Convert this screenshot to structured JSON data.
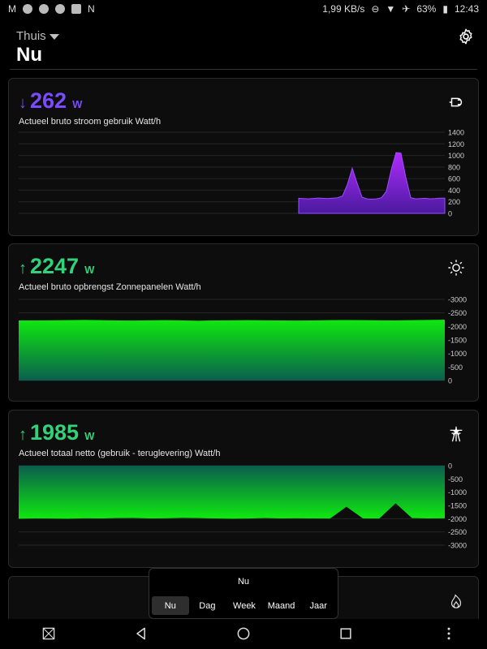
{
  "status_bar": {
    "speed": "1,99 KB/s",
    "battery": "63%",
    "time": "12:43"
  },
  "header": {
    "home_label": "Thuis",
    "title": "Nu"
  },
  "cards": [
    {
      "arrow": "↓",
      "value": "262",
      "unit": "W",
      "description": "Actueel bruto stroom gebruik Watt/h",
      "icon": "plug-icon",
      "color": "#7b4bff"
    },
    {
      "arrow": "↑",
      "value": "2247",
      "unit": "W",
      "description": "Actueel bruto opbrengst Zonnepanelen Watt/h",
      "icon": "sun-icon",
      "color": "#33d17a"
    },
    {
      "arrow": "↑",
      "value": "1985",
      "unit": "W",
      "description": "Actueel totaal netto (gebruik - teruglevering)  Watt/h",
      "icon": "power-tower-icon",
      "color": "#33d17a"
    }
  ],
  "chart_data": [
    {
      "type": "area",
      "title": "Actueel bruto stroom gebruik Watt/h",
      "ylim": [
        0,
        1400
      ],
      "yticks": [
        "1400",
        "1200",
        "1000",
        "800",
        "600",
        "400",
        "200",
        "0"
      ],
      "x": [
        0,
        4,
        8,
        12,
        16,
        18,
        20,
        22,
        24,
        26,
        28,
        30,
        32,
        34,
        36,
        38,
        40,
        42,
        44,
        46,
        48,
        50,
        52,
        54,
        56,
        58,
        60
      ],
      "values": [
        260,
        250,
        265,
        255,
        270,
        300,
        500,
        780,
        520,
        280,
        250,
        245,
        250,
        270,
        380,
        750,
        1050,
        1040,
        620,
        270,
        250,
        255,
        260,
        250,
        255,
        262,
        262
      ],
      "color": "#7b1bd8"
    },
    {
      "type": "area",
      "title": "Actueel bruto opbrengst Zonnepanelen Watt/h",
      "ylim": [
        0,
        -3000
      ],
      "yticks": [
        "-3000",
        "-2500",
        "-2000",
        "-1500",
        "-1000",
        "-500",
        "0"
      ],
      "values": [
        -2220,
        -2220,
        -2225,
        -2230,
        -2240,
        -2230,
        -2220,
        -2215,
        -2225,
        -2230,
        -2220,
        -2210,
        -2220,
        -2225,
        -2230,
        -2225,
        -2220,
        -2215,
        -2220,
        -2230,
        -2235,
        -2230,
        -2225,
        -2220,
        -2230,
        -2240,
        -2247
      ],
      "color": "#1ee61e"
    },
    {
      "type": "area",
      "title": "Actueel totaal netto (gebruik - teruglevering)  Watt/h",
      "ylim": [
        0,
        -3000
      ],
      "yticks": [
        "0",
        "-500",
        "-1000",
        "-1500",
        "-2000",
        "-2500",
        "-3000"
      ],
      "values": [
        -2000,
        -1990,
        -1995,
        -2000,
        -1985,
        -1990,
        -1980,
        -1975,
        -1990,
        -1985,
        -1970,
        -1980,
        -1990,
        -2000,
        -1995,
        -1980,
        -1990,
        -1985,
        -1990,
        -1995,
        -1550,
        -1990,
        -1995,
        -1420,
        -1980,
        -1990,
        -1985
      ],
      "color": "#1ee61e"
    }
  ],
  "selector": {
    "title": "Nu",
    "tabs": [
      "Nu",
      "Dag",
      "Week",
      "Maand",
      "Jaar"
    ],
    "active": "Nu"
  }
}
